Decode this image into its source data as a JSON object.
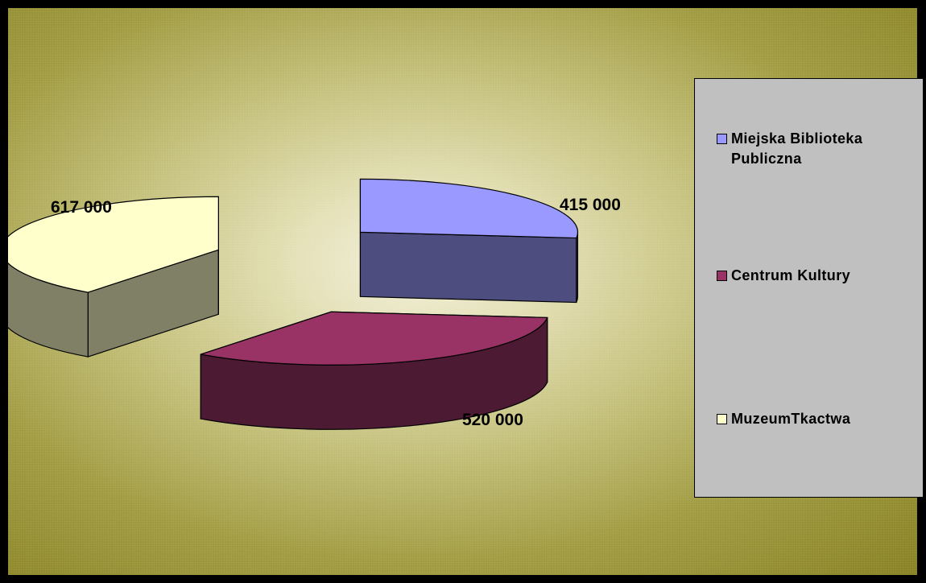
{
  "chart_data": {
    "type": "pie",
    "style": "3d-exploded",
    "categories": [
      "Miejska Biblioteka Publiczna",
      "Centrum Kultury",
      "MuzeumTkactwa"
    ],
    "values": [
      415000,
      520000,
      617000
    ],
    "value_labels": [
      "415 000",
      "520 000",
      "617 000"
    ],
    "colors": [
      "#9999ff",
      "#993366",
      "#ffffcc"
    ],
    "side_colors": [
      "#4d4d80",
      "#4d1a33",
      "#808066"
    ],
    "legend": {
      "position": "right",
      "items": [
        "Miejska Biblioteka Publiczna",
        "Centrum Kultury",
        "MuzeumTkactwa"
      ]
    },
    "title": ""
  }
}
